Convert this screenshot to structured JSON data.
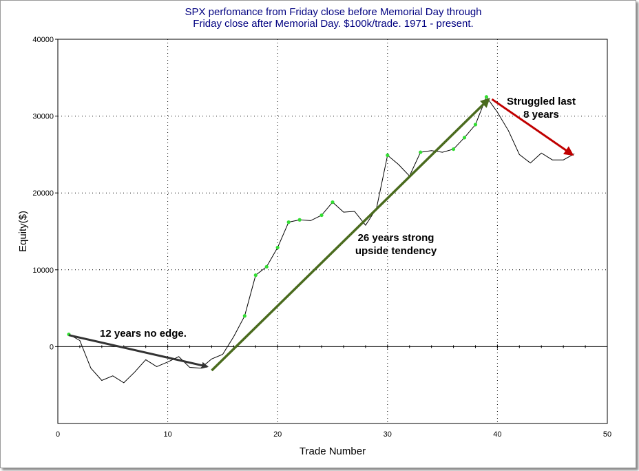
{
  "chart_data": {
    "type": "line",
    "title_line1": "SPX perfomance from Friday close before Memorial Day through",
    "title_line2": "Friday close after Memorial Day. $100k/trade. 1971 - present.",
    "xlabel": "Trade Number",
    "ylabel": "Equity($)",
    "xlim": [
      0,
      50
    ],
    "ylim": [
      -10000,
      40000
    ],
    "x_ticks": [
      0,
      10,
      20,
      30,
      40,
      50
    ],
    "y_ticks": [
      0,
      10000,
      20000,
      30000,
      40000
    ],
    "x_tick_labels": [
      "0",
      "10",
      "20",
      "30",
      "40",
      "50"
    ],
    "y_tick_labels": [
      "0",
      "10000",
      "20000",
      "30000",
      "40000"
    ],
    "grid": true,
    "line_color": "#000000",
    "highlight_color": "#33dd33",
    "series": [
      {
        "x": [
          1,
          2,
          3,
          4,
          5,
          6,
          7,
          8,
          9,
          10,
          11,
          12,
          13,
          14,
          15,
          16,
          17,
          18,
          19,
          20,
          21,
          22,
          23,
          24,
          25,
          26,
          27,
          28,
          29,
          30,
          31,
          32,
          33,
          34,
          35,
          36,
          37,
          38,
          39,
          40,
          41,
          42,
          43,
          44,
          45,
          46,
          47
        ],
        "y": [
          1600,
          800,
          -2800,
          -4400,
          -3800,
          -4700,
          -3300,
          -1700,
          -2600,
          -2000,
          -1300,
          -2700,
          -2800,
          -1600,
          -1000,
          1300,
          4000,
          9300,
          10400,
          12900,
          16200,
          16500,
          16400,
          17100,
          18800,
          17500,
          17600,
          15800,
          18000,
          24900,
          23700,
          22200,
          25300,
          25500,
          25300,
          25700,
          27200,
          28900,
          32500,
          30500,
          28100,
          25000,
          23900,
          25200,
          24300,
          24300,
          25100
        ],
        "highlight_x": [
          1,
          17,
          18,
          19,
          20,
          21,
          22,
          24,
          25,
          30,
          33,
          36,
          37,
          38,
          39
        ]
      }
    ],
    "annotations": [
      {
        "text": "12 years no edge.",
        "color": "#333333",
        "from": [
          1,
          1500
        ],
        "to": [
          13.6,
          -2600
        ]
      },
      {
        "text": "26 years strong upside tendency",
        "line1": "26 years strong",
        "line2": "upside tendency",
        "color": "#4a6b1e",
        "from": [
          14,
          -3100
        ],
        "to": [
          39.2,
          32200
        ]
      },
      {
        "text": "Struggled last 8 years",
        "line1": "Struggled last",
        "line2": "8 years",
        "color": "#c00000",
        "from": [
          39.5,
          32200
        ],
        "to": [
          46.8,
          25000
        ]
      }
    ]
  }
}
